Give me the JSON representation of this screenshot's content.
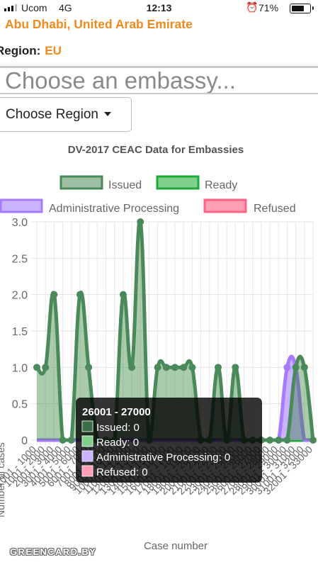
{
  "status_bar": {
    "carrier": "Ucom",
    "network": "4G",
    "time": "12:13",
    "battery": "71%",
    "battery_level": 0.71
  },
  "header": {
    "location": "Abu Dhabi, United Arab Emirate",
    "region_label": "Region:",
    "region_value": "EU"
  },
  "embassy_search": {
    "placeholder": "Choose an embassy..."
  },
  "region_dropdown": {
    "label": "Choose Region"
  },
  "watermark": "GREENCARD.BY",
  "colors": {
    "issued_fill": "rgba(46,125,50,0.4)",
    "issued_stroke": "#4a8a5a",
    "ready_fill": "#7ed08a",
    "ready_stroke": "#1faa3c",
    "admin_fill": "#c9b3ff",
    "admin_stroke": "#a77bff",
    "refused_fill": "#ff9fb6",
    "refused_stroke": "#ff6384",
    "tooltip_bg": "rgba(0,0,0,0.8)"
  },
  "chart_data": {
    "type": "area",
    "title": "DV-2017 CEAC Data for Embassies",
    "xlabel": "Case number",
    "ylabel": "Number of cases",
    "ylim": [
      0,
      3
    ],
    "yticks": [
      "0",
      "0.5",
      "1.0",
      "1.5",
      "2.0",
      "2.5",
      "3.0"
    ],
    "legend_position": "top",
    "categories": [
      "1001 - 1000",
      "1001 - 2000",
      "2001 - 3000",
      "3001 - 4000",
      "4001 - 5000",
      "5001 - 6000",
      "6001 - 7000",
      "7001 - 8000",
      "8001 - 9000",
      "9001 - 10000",
      "10001 - 11000",
      "11001 - 12000",
      "12001 - 13000",
      "13001 - 14000",
      "14001 - 15000",
      "15001 - 16000",
      "16001 - 17000",
      "17001 - 18000",
      "18001 - 19000",
      "19001 - 20000",
      "20001 - 21000",
      "21001 - 22000",
      "22001 - 23000",
      "23001 - 24000",
      "24001 - 25000",
      "25001 - 26000",
      "26001 - 27000",
      "27001 - 28000",
      "28001 - 29000",
      "29001 - 30000",
      "30001 - 31000",
      "31001 - 32000",
      "32001 - 33000"
    ],
    "series": [
      {
        "name": "Issued",
        "values": [
          1,
          1,
          2,
          0,
          0,
          2,
          1,
          0,
          0,
          0,
          2,
          1,
          3,
          0,
          1,
          1,
          1,
          1,
          1,
          0,
          0,
          1,
          0,
          1,
          0,
          0,
          0,
          0,
          0,
          0,
          1,
          1,
          0
        ]
      },
      {
        "name": "Ready",
        "values": [
          0,
          0,
          0,
          0,
          0,
          0,
          0,
          0,
          0,
          0,
          0,
          0,
          0,
          0,
          0,
          0,
          0,
          0,
          0,
          0,
          0,
          0,
          0,
          0,
          0,
          0,
          0,
          0,
          0,
          0,
          0,
          0,
          0
        ]
      },
      {
        "name": "Administrative Processing",
        "values": [
          0,
          0,
          0,
          0,
          0,
          0,
          0,
          0,
          0,
          0,
          0,
          0,
          0,
          0,
          0,
          0,
          0,
          0,
          0,
          0,
          0,
          0,
          0,
          0,
          0,
          0,
          0,
          0,
          0,
          1,
          1,
          0,
          0
        ]
      },
      {
        "name": "Refused",
        "values": [
          0,
          0,
          0,
          0,
          0,
          0,
          0,
          0,
          0,
          0,
          0,
          0,
          0,
          0,
          0,
          0,
          0,
          0,
          0,
          0,
          0,
          0,
          0,
          0,
          0,
          0,
          0,
          0,
          0,
          0,
          0,
          0,
          0
        ]
      }
    ],
    "tooltip": {
      "title": "26001 - 27000",
      "items": [
        "Issued: 0",
        "Ready: 0",
        "Administrative Processing: 0",
        "Refused: 0"
      ]
    }
  }
}
